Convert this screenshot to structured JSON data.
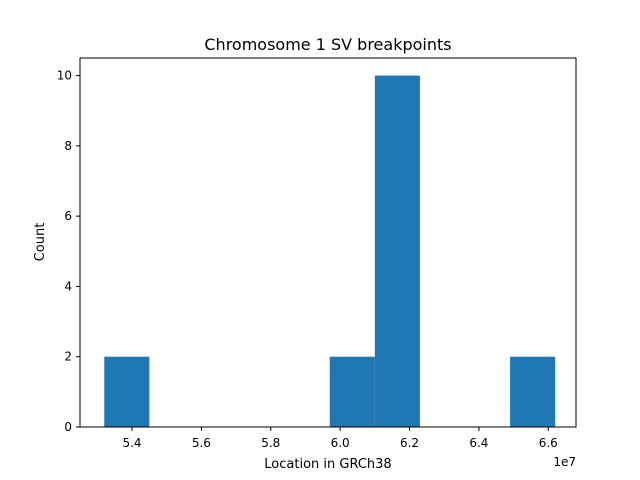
{
  "chart_data": {
    "type": "bar",
    "title": "Chromosome 1 SV breakpoints",
    "xlabel": "Location in GRCh38",
    "ylabel": "Count",
    "x_offset_label": "1e7",
    "xlim": [
      5.25,
      6.68
    ],
    "ylim": [
      0,
      10.5
    ],
    "bins": [
      {
        "start": 5.32,
        "end": 5.45,
        "count": 2
      },
      {
        "start": 5.45,
        "end": 5.58,
        "count": 0
      },
      {
        "start": 5.58,
        "end": 5.71,
        "count": 0
      },
      {
        "start": 5.71,
        "end": 5.84,
        "count": 0
      },
      {
        "start": 5.84,
        "end": 5.97,
        "count": 0
      },
      {
        "start": 5.97,
        "end": 6.1,
        "count": 2
      },
      {
        "start": 6.1,
        "end": 6.23,
        "count": 10
      },
      {
        "start": 6.23,
        "end": 6.36,
        "count": 0
      },
      {
        "start": 6.36,
        "end": 6.49,
        "count": 0
      },
      {
        "start": 6.49,
        "end": 6.62,
        "count": 2
      }
    ],
    "x_ticks": [
      {
        "value": 5.4,
        "label": "5.4"
      },
      {
        "value": 5.6,
        "label": "5.6"
      },
      {
        "value": 5.8,
        "label": "5.8"
      },
      {
        "value": 6.0,
        "label": "6.0"
      },
      {
        "value": 6.2,
        "label": "6.2"
      },
      {
        "value": 6.4,
        "label": "6.4"
      },
      {
        "value": 6.6,
        "label": "6.6"
      }
    ],
    "y_ticks": [
      {
        "value": 0,
        "label": "0"
      },
      {
        "value": 2,
        "label": "2"
      },
      {
        "value": 4,
        "label": "4"
      },
      {
        "value": 6,
        "label": "6"
      },
      {
        "value": 8,
        "label": "8"
      },
      {
        "value": 10,
        "label": "10"
      }
    ],
    "grid": false,
    "colors": {
      "bar": "#1f77b4"
    }
  }
}
